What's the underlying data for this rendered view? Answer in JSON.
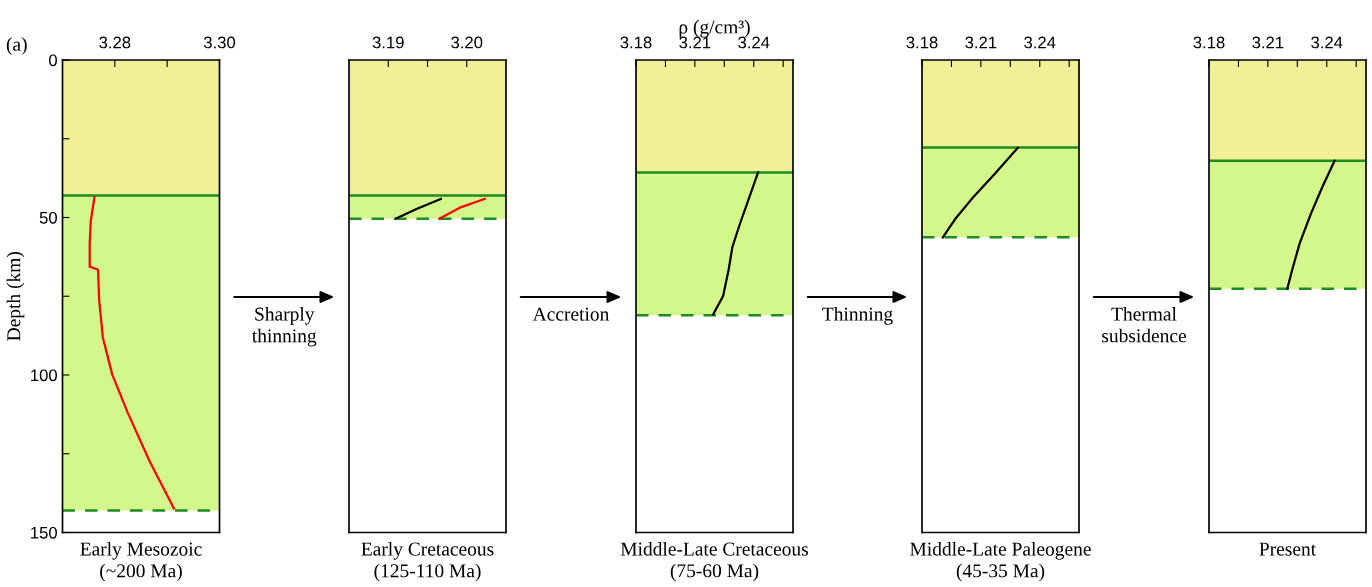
{
  "chart_data": [
    {
      "type": "line",
      "xlim": [
        3.27,
        3.3
      ],
      "xticks": [
        3.28,
        {
          "value": 3.29,
          "label": null
        },
        {
          "value": 3.3,
          "label": "3.30"
        }
      ],
      "ylim": [
        150,
        0
      ],
      "yticks": [
        0,
        {
          "value": 25,
          "label": null
        },
        50,
        {
          "value": 75,
          "label": null
        },
        100,
        {
          "value": 125,
          "label": null
        },
        150
      ],
      "ylabel": "Depth (km)",
      "title": "Early Mesozoic\n(~200 Ma)",
      "annotations": [
        "(a)"
      ],
      "bands": [
        {
          "axis": "y",
          "from": 0,
          "to": 43,
          "color": "#f0f096"
        },
        {
          "axis": "y",
          "from": 43,
          "to": 143,
          "color": "#d4f78c"
        }
      ],
      "ref_lines": [
        {
          "axis": "y",
          "value": 43,
          "color": "#1e8c1e",
          "line_style": "solid"
        },
        {
          "axis": "y",
          "value": 143,
          "color": "#1e8c1e",
          "line_style": "dashed"
        }
      ],
      "series": [
        {
          "color": "#ff0000",
          "x": [
            3.2761,
            3.2754,
            3.2752,
            3.2752,
            3.2768,
            3.277,
            3.2777,
            3.2795,
            3.2824,
            3.2866,
            3.2913
          ],
          "values": [
            43.6,
            51.1,
            58.2,
            65.6,
            66.6,
            76.1,
            88.0,
            99.8,
            111.7,
            127.2,
            142.4
          ]
        }
      ]
    },
    {
      "type": "line",
      "xlim": [
        3.185,
        3.205
      ],
      "xticks": [
        3.19,
        {
          "value": 3.195,
          "label": null
        },
        {
          "value": 3.2,
          "label": "3.20"
        }
      ],
      "ylim": [
        150,
        0
      ],
      "tick_labels": "x",
      "title": "Early Cretaceous\n(125-110 Ma)",
      "annotations": [
        "Sharply\nthinning"
      ],
      "bands": [
        {
          "axis": "y",
          "from": 0,
          "to": 43,
          "color": "#f0f096"
        },
        {
          "axis": "y",
          "from": 43,
          "to": 50.4,
          "color": "#d4f78c"
        }
      ],
      "ref_lines": [
        {
          "axis": "y",
          "value": 43,
          "color": "#1e8c1e",
          "line_style": "solid"
        },
        {
          "axis": "y",
          "value": 50.4,
          "color": "#1e8c1e",
          "line_style": "dashed"
        }
      ],
      "series": [
        {
          "color": "#000000",
          "x": [
            3.191,
            3.1936,
            3.1967
          ],
          "values": [
            50.3,
            47.3,
            44.1
          ]
        },
        {
          "color": "#ff0000",
          "x": [
            3.1965,
            3.1993,
            3.2023
          ],
          "values": [
            50.4,
            46.7,
            44.1
          ]
        }
      ]
    },
    {
      "type": "line",
      "xlim": [
        3.18,
        3.26
      ],
      "xticks": [
        3.18,
        {
          "value": 3.195,
          "label": null
        },
        3.21,
        {
          "value": 3.225,
          "label": null
        },
        3.24,
        {
          "value": 3.255,
          "label": null
        }
      ],
      "ylim": [
        150,
        0
      ],
      "tick_labels": "x",
      "xlabel": "ρ (g/cm³)",
      "title": "Middle-Late Cretaceous\n(75-60 Ma)",
      "annotations": [
        "Accretion"
      ],
      "bands": [
        {
          "axis": "y",
          "from": 0,
          "to": 35.7,
          "color": "#f0f096"
        },
        {
          "axis": "y",
          "from": 35.7,
          "to": 81,
          "color": "#d4f78c"
        }
      ],
      "ref_lines": [
        {
          "axis": "y",
          "value": 35.7,
          "color": "#1e8c1e",
          "line_style": "solid"
        },
        {
          "axis": "y",
          "value": 81,
          "color": "#1e8c1e",
          "line_style": "dashed"
        }
      ],
      "series": [
        {
          "color": "#000000",
          "x": [
            3.2422,
            3.2375,
            3.2328,
            3.2291,
            3.2272,
            3.2244,
            3.2193
          ],
          "values": [
            35.7,
            44.0,
            52.3,
            59.4,
            66.6,
            74.9,
            80.8
          ]
        }
      ]
    },
    {
      "type": "line",
      "xlim": [
        3.18,
        3.26
      ],
      "xticks": [
        3.18,
        {
          "value": 3.195,
          "label": null
        },
        3.21,
        {
          "value": 3.225,
          "label": null
        },
        3.24,
        {
          "value": 3.255,
          "label": null
        }
      ],
      "ylim": [
        150,
        0
      ],
      "tick_labels": "x",
      "title": "Middle-Late Paleogene\n(45-35 Ma)",
      "annotations": [
        "Thinning"
      ],
      "bands": [
        {
          "axis": "y",
          "from": 0,
          "to": 27.8,
          "color": "#f0f096"
        },
        {
          "axis": "y",
          "from": 27.8,
          "to": 56.3,
          "color": "#d4f78c"
        }
      ],
      "ref_lines": [
        {
          "axis": "y",
          "value": 27.8,
          "color": "#1e8c1e",
          "line_style": "solid"
        },
        {
          "axis": "y",
          "value": 56.3,
          "color": "#1e8c1e",
          "line_style": "dashed"
        }
      ],
      "series": [
        {
          "color": "#000000",
          "x": [
            3.2288,
            3.2169,
            3.2055,
            3.1969,
            3.1906
          ],
          "values": [
            27.9,
            36.3,
            44.0,
            50.5,
            56.3
          ]
        }
      ]
    },
    {
      "type": "line",
      "xlim": [
        3.18,
        3.26
      ],
      "xticks": [
        3.18,
        {
          "value": 3.195,
          "label": null
        },
        3.21,
        {
          "value": 3.225,
          "label": null
        },
        3.24,
        {
          "value": 3.255,
          "label": null
        }
      ],
      "ylim": [
        150,
        0
      ],
      "tick_labels": "x",
      "title": "Present",
      "annotations": [
        "Thermal\nsubsidence"
      ],
      "bands": [
        {
          "axis": "y",
          "from": 0,
          "to": 32,
          "color": "#f0f096"
        },
        {
          "axis": "y",
          "from": 32,
          "to": 72.6,
          "color": "#d4f78c"
        }
      ],
      "ref_lines": [
        {
          "axis": "y",
          "value": 32,
          "color": "#1e8c1e",
          "line_style": "solid"
        },
        {
          "axis": "y",
          "value": 72.6,
          "color": "#1e8c1e",
          "line_style": "dashed"
        }
      ],
      "series": [
        {
          "color": "#000000",
          "x": [
            3.244,
            3.2377,
            3.232,
            3.2262,
            3.2224,
            3.2199
          ],
          "values": [
            32.0,
            40.4,
            48.7,
            58.2,
            66.6,
            72.6
          ]
        }
      ]
    }
  ]
}
